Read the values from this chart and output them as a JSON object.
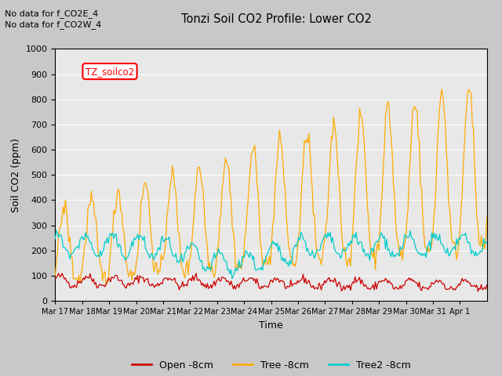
{
  "title": "Tonzi Soil CO2 Profile: Lower CO2",
  "xlabel": "Time",
  "ylabel": "Soil CO2 (ppm)",
  "ylim": [
    0,
    1000
  ],
  "subtitle_lines": [
    "No data for f_CO2E_4",
    "No data for f_CO2W_4"
  ],
  "legend_label": "TZ_soilco2",
  "xtick_labels": [
    "Mar 17",
    "Mar 18",
    "Mar 19",
    "Mar 20",
    "Mar 21",
    "Mar 22",
    "Mar 23",
    "Mar 24",
    "Mar 25",
    "Mar 26",
    "Mar 27",
    "Mar 28",
    "Mar 29",
    "Mar 30",
    "Mar 31",
    "Apr 1"
  ],
  "line_colors": {
    "open": "#cc0000",
    "tree": "#ffaa00",
    "tree2": "#00cccc"
  },
  "line_labels": [
    "Open -8cm",
    "Tree -8cm",
    "Tree2 -8cm"
  ],
  "fig_background": "#c8c8c8",
  "plot_background": "#e8e8e8",
  "n_points": 384,
  "days": 16
}
